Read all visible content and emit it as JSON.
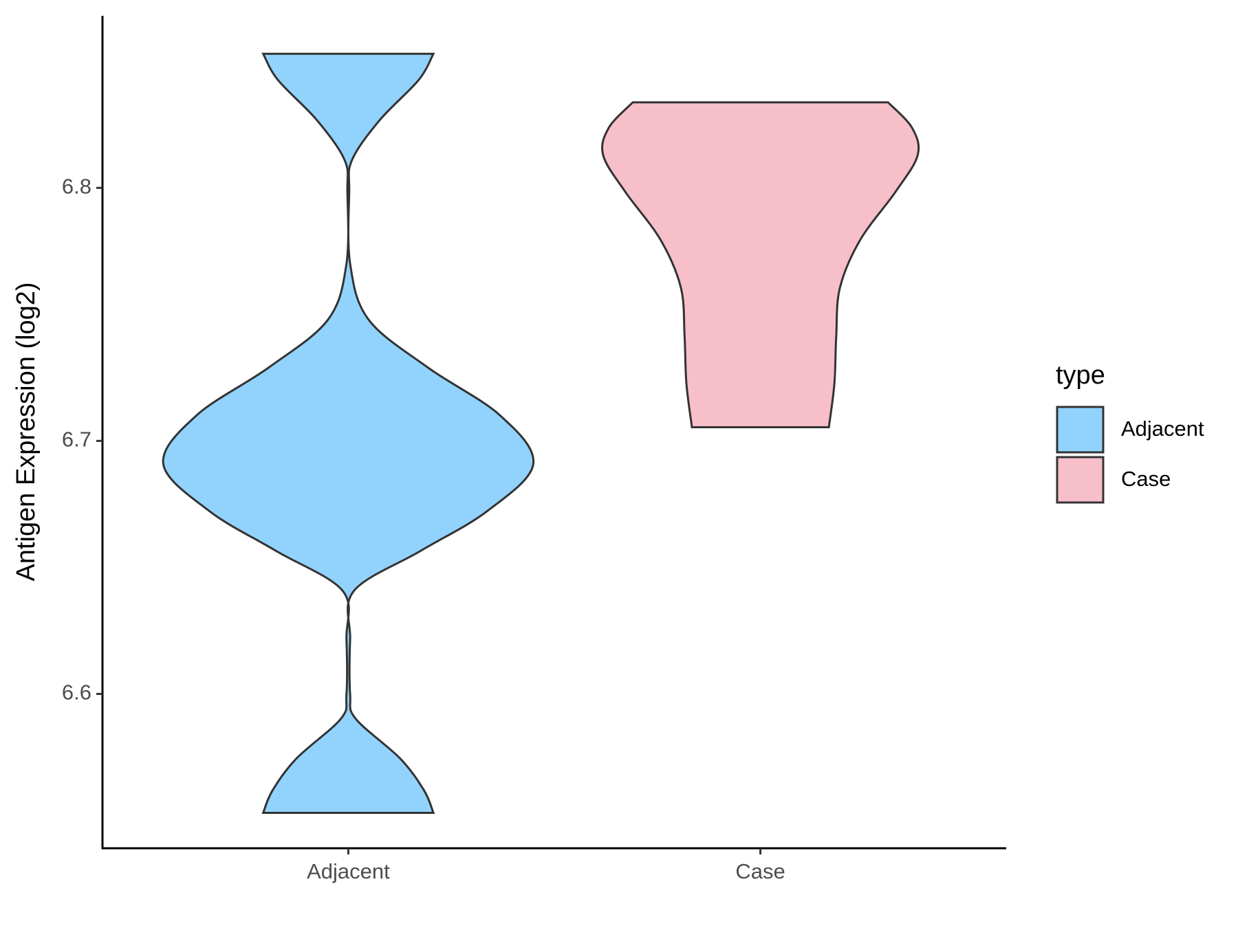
{
  "chart_data": {
    "type": "violin",
    "y_label": "Antigen Expression (log2)",
    "categories": [
      "Adjacent",
      "Case"
    ],
    "legend_title": "type",
    "legend_position": "right",
    "ylim": [
      6.539,
      6.868
    ],
    "yticks": [
      6.6,
      6.7,
      6.8
    ],
    "series": [
      {
        "name": "Adjacent",
        "color": "#92d3fd",
        "y": [
          6.553,
          6.5618,
          6.5745,
          6.5902,
          6.5997,
          6.6218,
          6.6407,
          6.6565,
          6.6722,
          6.6909,
          6.7101,
          6.729,
          6.7479,
          6.77,
          6.7984,
          6.811,
          6.8268,
          6.8426,
          6.853
        ],
        "density": [
          0.46,
          0.41,
          0.28,
          0.04,
          0.01,
          0.01,
          0.03,
          0.39,
          0.75,
          1,
          0.82,
          0.43,
          0.11,
          0.01,
          0.005,
          0.02,
          0.17,
          0.38,
          0.46
        ]
      },
      {
        "name": "Case",
        "color": "#f7bfca",
        "y": [
          6.7054,
          6.7227,
          6.7416,
          6.7606,
          6.7795,
          6.7984,
          6.8129,
          6.8237,
          6.8338
        ],
        "density": [
          0.37,
          0.4,
          0.41,
          0.43,
          0.54,
          0.73,
          0.85,
          0.82,
          0.69
        ]
      }
    ]
  }
}
